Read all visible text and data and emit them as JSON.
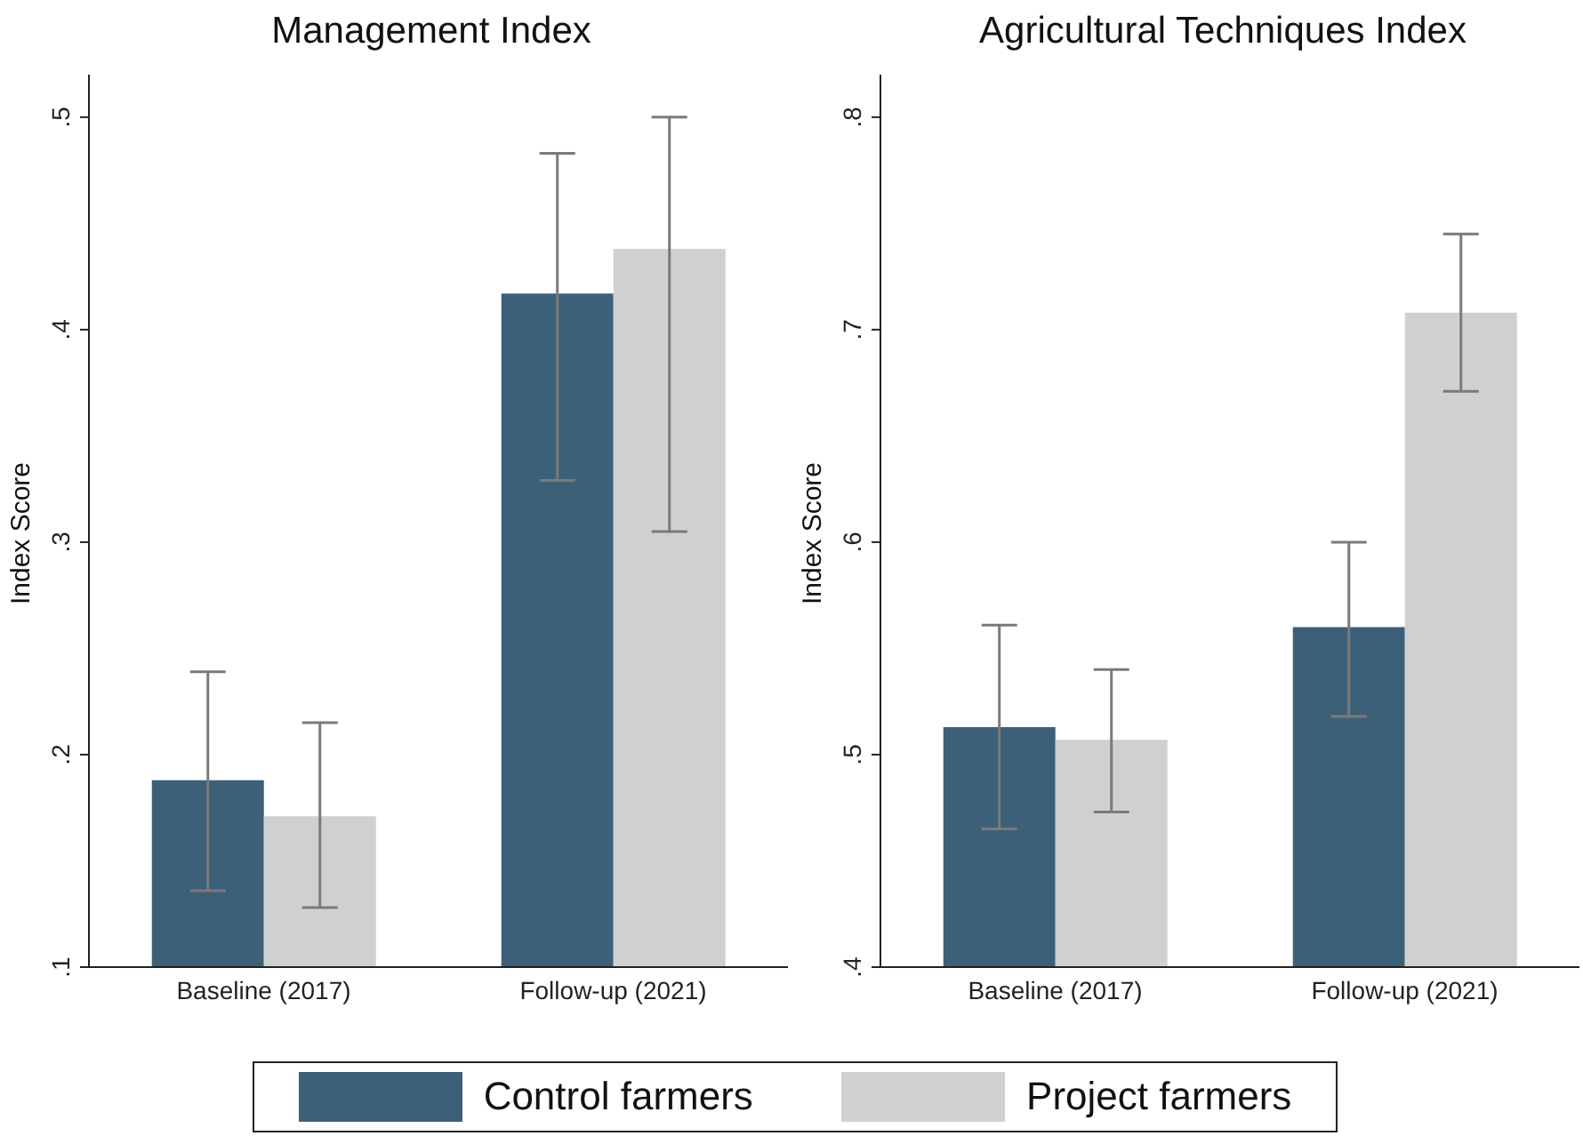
{
  "chart_data": [
    {
      "type": "bar",
      "title": "Management Index",
      "ylabel": "Index Score",
      "categories": [
        "Baseline (2017)",
        "Follow-up (2021)"
      ],
      "series": [
        {
          "name": "Control farmers",
          "color": "#3d6079",
          "values": [
            0.188,
            0.417
          ],
          "errors": [
            [
              0.136,
              0.239
            ],
            [
              0.329,
              0.483
            ]
          ]
        },
        {
          "name": "Project farmers",
          "color": "#d0d0d0",
          "values": [
            0.171,
            0.438
          ],
          "errors": [
            [
              0.128,
              0.215
            ],
            [
              0.305,
              0.5
            ]
          ]
        }
      ],
      "ylim": [
        0.1,
        0.52
      ],
      "yticks": [
        {
          "value": 0.1,
          "label": ".1"
        },
        {
          "value": 0.2,
          "label": ".2"
        },
        {
          "value": 0.3,
          "label": ".3"
        },
        {
          "value": 0.4,
          "label": ".4"
        },
        {
          "value": 0.5,
          "label": ".5"
        }
      ],
      "grid": false,
      "legend": "bottom"
    },
    {
      "type": "bar",
      "title": "Agricultural Techniques Index",
      "ylabel": "Index Score",
      "categories": [
        "Baseline (2017)",
        "Follow-up (2021)"
      ],
      "series": [
        {
          "color": "#3d6079",
          "values": [
            0.513,
            0.56
          ],
          "errors": [
            [
              0.465,
              0.561
            ],
            [
              0.518,
              0.6
            ]
          ]
        },
        {
          "color": "#d0d0d0",
          "values": [
            0.507,
            0.708
          ],
          "errors": [
            [
              0.473,
              0.54
            ],
            [
              0.671,
              0.745
            ]
          ]
        }
      ],
      "ylim": [
        0.4,
        0.82
      ],
      "yticks": [
        {
          "value": 0.4,
          "label": ".4"
        },
        {
          "value": 0.5,
          "label": ".5"
        },
        {
          "value": 0.6,
          "label": ".6"
        },
        {
          "value": 0.7,
          "label": ".7"
        },
        {
          "value": 0.8,
          "label": ".8"
        }
      ],
      "grid": false
    }
  ]
}
